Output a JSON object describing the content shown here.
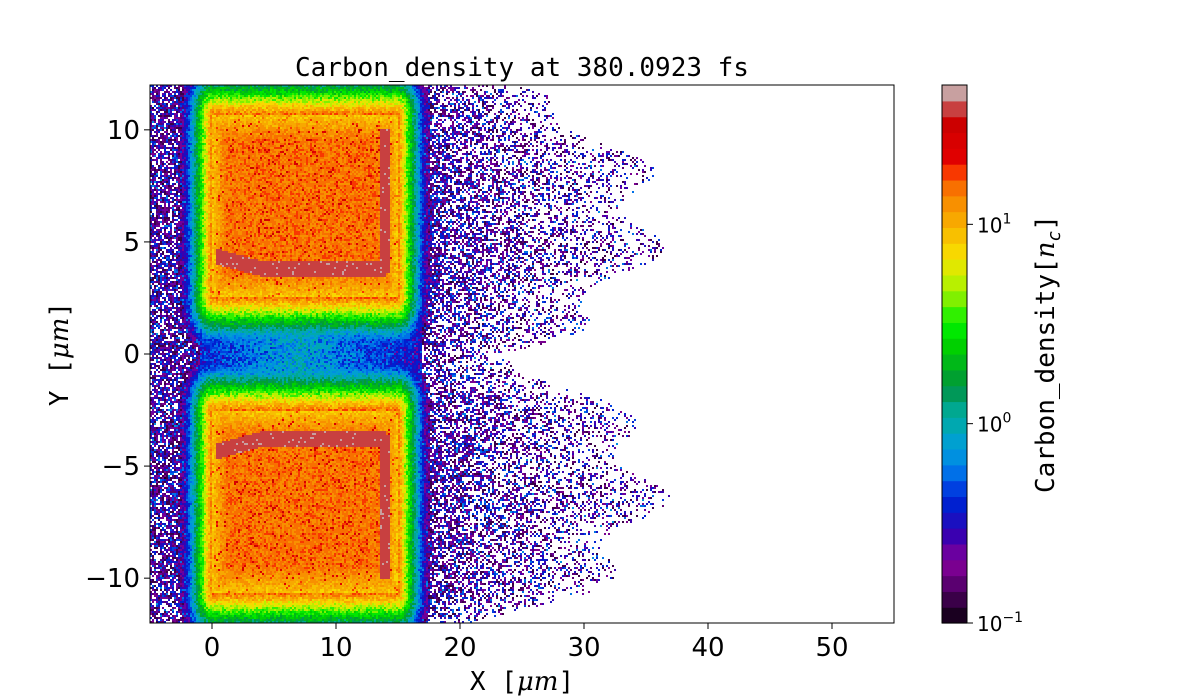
{
  "chart_data": {
    "type": "heatmap",
    "title": "Carbon_density at 380.0923 fs",
    "xlabel": "X [μm]",
    "ylabel": "Y [μm]",
    "xlim": [
      -5,
      55
    ],
    "ylim": [
      -12,
      12
    ],
    "x_ticks": [
      0,
      10,
      20,
      30,
      40,
      50
    ],
    "x_tick_labels": [
      "0",
      "10",
      "20",
      "30",
      "40",
      "50"
    ],
    "y_ticks": [
      -10,
      -5,
      0,
      5,
      10
    ],
    "y_tick_labels": [
      "−10",
      "−5",
      "0",
      "5",
      "10"
    ],
    "grid": false,
    "colorbar": {
      "label": "Carbon_density[n_c]",
      "scale": "log",
      "range": [
        0.1,
        50
      ],
      "ticks": [
        0.1,
        1,
        10
      ],
      "tick_labels": [
        "10⁻¹",
        "10⁰",
        "10¹"
      ],
      "colors": [
        "#1a0020",
        "#3a0048",
        "#5a0070",
        "#7a0090",
        "#6a00a0",
        "#3a00b0",
        "#1a10c0",
        "#0020d0",
        "#0040e0",
        "#0070e8",
        "#0090e0",
        "#00a0d0",
        "#00a8b0",
        "#00a890",
        "#009858",
        "#00a030",
        "#00b818",
        "#00d000",
        "#00e800",
        "#30f000",
        "#80f000",
        "#b8f000",
        "#e0e800",
        "#f8d800",
        "#f8c000",
        "#f8a800",
        "#f89000",
        "#f87000",
        "#f83800",
        "#e00000",
        "#d80000",
        "#cc0000",
        "#c84040",
        "#c8a0a0"
      ]
    },
    "regions": [
      {
        "name": "upper slab",
        "x": [
          0,
          15
        ],
        "y": [
          2.5,
          10.7
        ],
        "density_core": 15,
        "edge_line_y": 3.8
      },
      {
        "name": "lower slab",
        "x": [
          0,
          15
        ],
        "y": [
          -10.7,
          -2.5
        ],
        "density_core": 15,
        "edge_line_y": -3.8
      },
      {
        "name": "expanding plasma",
        "x": [
          -5,
          36
        ],
        "y": [
          -12,
          12
        ],
        "density": 0.2
      }
    ]
  }
}
